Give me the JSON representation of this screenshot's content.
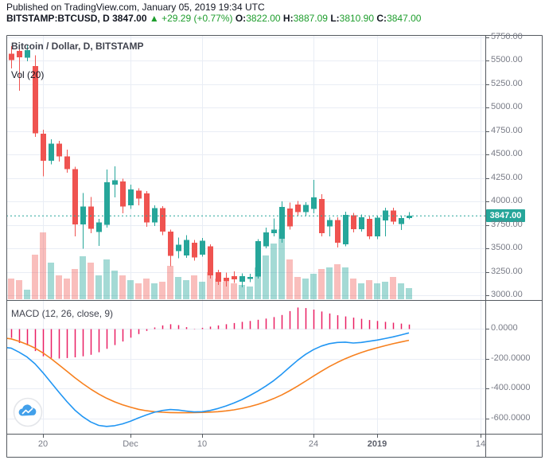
{
  "header": {
    "published_line": "Published on TradingView.com, January 05, 2019 19:34 UTC",
    "symbol": "BITSTAMP:BTCUSD, D",
    "last_price": "3847.00",
    "direction_arrow": "▲",
    "change": "+29.29 (+0.77%)",
    "o_label": "O:",
    "o_value": "3822.00",
    "h_label": "H:",
    "h_value": "3887.09",
    "l_label": "L:",
    "l_value": "3810.90",
    "c_label": "C:",
    "c_value": "3847.00"
  },
  "chart": {
    "title": "Bitcoin / Dollar, D, BITSTAMP",
    "vol_label": "Vol (20)",
    "macd_label": "MACD (12, 26, close, 9)",
    "last_price_label": "3847.00"
  },
  "colors": {
    "up": "#26a69a",
    "down": "#ef5350",
    "vol_up": "rgba(38,166,154,0.42)",
    "vol_down": "rgba(239,83,80,0.38)",
    "macd_line": "#2196f3",
    "signal_line": "#f7801e",
    "histogram": "#e91e63",
    "accent_badge": "#26a69a",
    "header_green": "#1d9d2c",
    "grid": "#e9edf5",
    "frame": "#555a60",
    "axis_text": "#787b86",
    "logo_blue": "#42a0ea"
  },
  "chart_data": {
    "type": "candlestick",
    "title": "Bitcoin / Dollar, D, BITSTAMP",
    "exchange": "BITSTAMP",
    "interval": "D",
    "start_date": "2018-11-15",
    "end_date": "2019-01-05",
    "price_axis_range": [
      2950,
      5770
    ],
    "last_price": 3847.0,
    "candles_ohlcv": [
      [
        5640,
        5715,
        5340,
        5575,
        30
      ],
      [
        5575,
        5655,
        5420,
        5510,
        26
      ],
      [
        5605,
        5670,
        5180,
        5540,
        24
      ],
      [
        5535,
        5670,
        5495,
        5615,
        12
      ],
      [
        5445,
        5560,
        4690,
        4725,
        56
      ],
      [
        4725,
        4765,
        4270,
        4435,
        84
      ],
      [
        4435,
        4665,
        4395,
        4615,
        46
      ],
      [
        4615,
        4645,
        4425,
        4480,
        30
      ],
      [
        4480,
        4555,
        4305,
        4345,
        26
      ],
      [
        4345,
        4370,
        3630,
        3755,
        38
      ],
      [
        3755,
        4090,
        3495,
        3945,
        54
      ],
      [
        3945,
        4050,
        3660,
        3710,
        46
      ],
      [
        3675,
        3815,
        3525,
        3775,
        30
      ],
      [
        3750,
        4340,
        3720,
        4205,
        50
      ],
      [
        4180,
        4375,
        4045,
        4225,
        36
      ],
      [
        4215,
        4245,
        3875,
        3945,
        30
      ],
      [
        3960,
        4180,
        3920,
        4130,
        24
      ],
      [
        4115,
        4140,
        3960,
        4030,
        20
      ],
      [
        4085,
        4110,
        3730,
        3775,
        26
      ],
      [
        3775,
        3960,
        3740,
        3930,
        20
      ],
      [
        3930,
        3950,
        3640,
        3680,
        22
      ],
      [
        3680,
        3700,
        3310,
        3420,
        42
      ],
      [
        3470,
        3615,
        3395,
        3540,
        28
      ],
      [
        3425,
        3640,
        3400,
        3588,
        24
      ],
      [
        3560,
        3590,
        3370,
        3405,
        30
      ],
      [
        3435,
        3610,
        3410,
        3580,
        22
      ],
      [
        3520,
        3545,
        3180,
        3212,
        34
      ],
      [
        3245,
        3270,
        3110,
        3142,
        26
      ],
      [
        3185,
        3240,
        3095,
        3148,
        22
      ],
      [
        3205,
        3255,
        3130,
        3172,
        20
      ],
      [
        3145,
        3235,
        3085,
        3205,
        18
      ],
      [
        3172,
        3230,
        3140,
        3196,
        16
      ],
      [
        3200,
        3600,
        3180,
        3577,
        40
      ],
      [
        3520,
        3720,
        3500,
        3672,
        55
      ],
      [
        3662,
        3820,
        3630,
        3700,
        70
      ],
      [
        3602,
        4000,
        3560,
        3942,
        88
      ],
      [
        3925,
        3990,
        3700,
        3732,
        50
      ],
      [
        3968,
        4005,
        3850,
        3886,
        28
      ],
      [
        3886,
        3995,
        3848,
        3962,
        26
      ],
      [
        3920,
        4230,
        3874,
        4045,
        32
      ],
      [
        4026,
        4080,
        3630,
        3662,
        38
      ],
      [
        3732,
        3830,
        3628,
        3800,
        40
      ],
      [
        3800,
        3830,
        3510,
        3560,
        44
      ],
      [
        3543,
        3890,
        3520,
        3857,
        40
      ],
      [
        3855,
        3880,
        3670,
        3705,
        26
      ],
      [
        3705,
        3860,
        3680,
        3832,
        20
      ],
      [
        3815,
        3840,
        3600,
        3630,
        24
      ],
      [
        3630,
        3850,
        3600,
        3826,
        20
      ],
      [
        3800,
        3935,
        3630,
        3905,
        22
      ],
      [
        3905,
        3935,
        3755,
        3785,
        28
      ],
      [
        3760,
        3845,
        3695,
        3823,
        20
      ],
      [
        3822,
        3887,
        3811,
        3847,
        14
      ]
    ],
    "macd": {
      "params": "12, 26, close, 9",
      "histogram": [
        -55,
        -62,
        -96,
        -112,
        -150,
        -185,
        -196,
        -200,
        -197,
        -192,
        -185,
        -175,
        -158,
        -135,
        -110,
        -86,
        -60,
        -36,
        -15,
        8,
        22,
        30,
        24,
        10,
        -5,
        6,
        14,
        22,
        30,
        38,
        46,
        52,
        60,
        68,
        78,
        92,
        118,
        142,
        138,
        128,
        115,
        102,
        90,
        82,
        74,
        66,
        58,
        52,
        46,
        40,
        34,
        28
      ],
      "macd_line": [
        -125,
        -130,
        -158,
        -190,
        -235,
        -295,
        -360,
        -425,
        -488,
        -545,
        -590,
        -625,
        -648,
        -655,
        -650,
        -638,
        -620,
        -598,
        -578,
        -560,
        -548,
        -542,
        -545,
        -552,
        -558,
        -556,
        -548,
        -535,
        -518,
        -498,
        -475,
        -448,
        -418,
        -385,
        -348,
        -305,
        -258,
        -212,
        -172,
        -140,
        -116,
        -100,
        -92,
        -90,
        -96,
        -92,
        -84,
        -76,
        -66,
        -55,
        -42,
        -28
      ],
      "signal_line": [
        -62,
        -68,
        -85,
        -105,
        -130,
        -162,
        -200,
        -242,
        -285,
        -328,
        -368,
        -405,
        -438,
        -466,
        -490,
        -510,
        -526,
        -540,
        -550,
        -556,
        -560,
        -562,
        -563,
        -563,
        -562,
        -561,
        -559,
        -556,
        -551,
        -544,
        -534,
        -522,
        -507,
        -489,
        -468,
        -444,
        -416,
        -385,
        -352,
        -318,
        -285,
        -254,
        -226,
        -201,
        -179,
        -160,
        -143,
        -128,
        -114,
        -101,
        -89,
        -78
      ],
      "axis_range": [
        -704,
        187
      ]
    },
    "price_ticks": [
      "5750.00",
      "5500.00",
      "5250.00",
      "5000.00",
      "4750.00",
      "4500.00",
      "4250.00",
      "4000.00",
      "3750.00",
      "3500.00",
      "3250.00",
      "3000.00"
    ],
    "macd_ticks": [
      "0.0000",
      "-200.0000",
      "-400.0000",
      "-600.0000"
    ],
    "time_ticks": [
      {
        "label": "20",
        "day_index": 5,
        "bold": false
      },
      {
        "label": "Dec",
        "day_index": 16,
        "bold": false
      },
      {
        "label": "10",
        "day_index": 25,
        "bold": false
      },
      {
        "label": "24",
        "day_index": 39,
        "bold": false
      },
      {
        "label": "2019",
        "day_index": 47,
        "bold": true
      },
      {
        "label": "14",
        "day_index": 60,
        "bold": false
      }
    ]
  }
}
